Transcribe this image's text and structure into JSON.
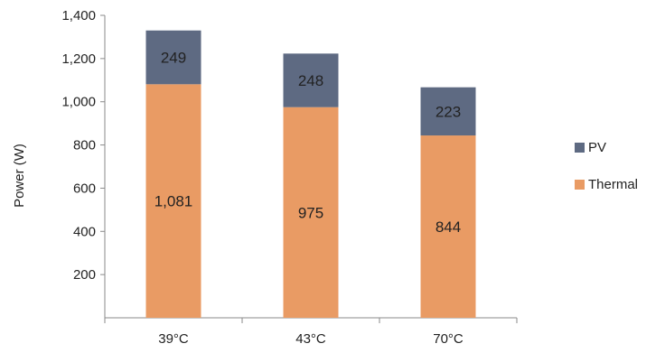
{
  "chart_data": {
    "type": "bar",
    "stacked": true,
    "categories": [
      "39°C",
      "43°C",
      "70°C"
    ],
    "series": [
      {
        "name": "Thermal",
        "values": [
          1081,
          975,
          844
        ],
        "labels": [
          "1,081",
          "975",
          "844"
        ],
        "color": "#E99B64"
      },
      {
        "name": "PV",
        "values": [
          249,
          248,
          223
        ],
        "labels": [
          "249",
          "248",
          "223"
        ],
        "color": "#5E6A82"
      }
    ],
    "ylabel": "Power (W)",
    "xlabel": "",
    "ylim": [
      0,
      1400
    ],
    "yticks": [
      200,
      400,
      600,
      800,
      1000,
      1200,
      1400
    ],
    "ytick_labels": [
      "200",
      "400",
      "600",
      "800",
      "1,000",
      "1,200",
      "1,400"
    ],
    "legend": {
      "placement": "right",
      "order": [
        "PV",
        "Thermal"
      ]
    },
    "grid": false
  }
}
